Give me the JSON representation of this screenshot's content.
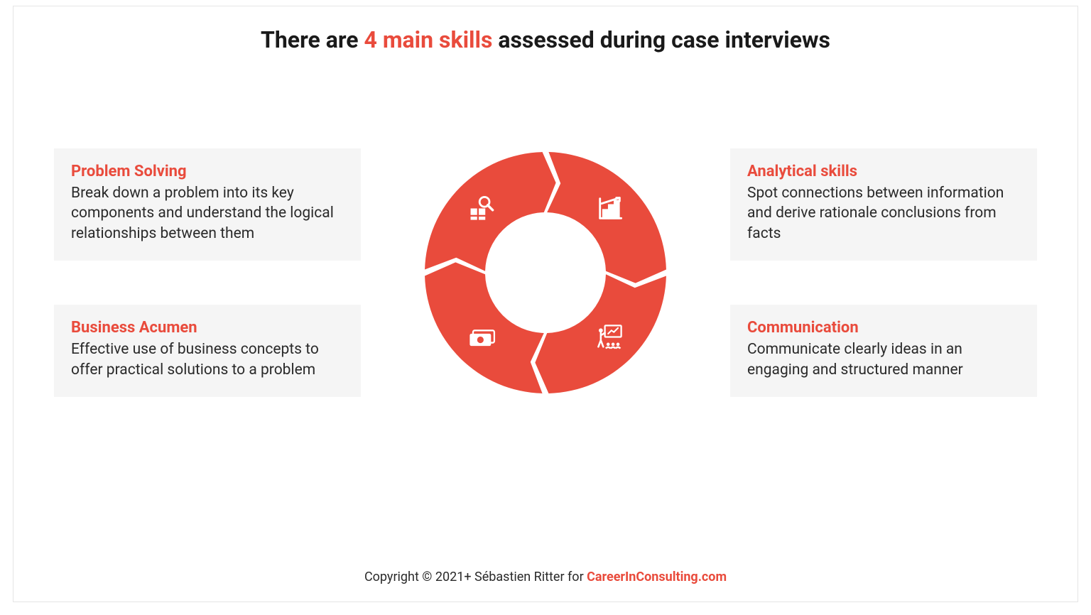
{
  "title": {
    "before": "There are ",
    "accent": "4 main skills",
    "after": " assessed during case interviews",
    "fontsize": 32,
    "accent_color": "#e94b3c",
    "text_color": "#1a1a1a"
  },
  "skills": {
    "top_left": {
      "title": "Problem Solving",
      "desc": "Break down a problem into its key components and understand the logical relationships between them",
      "icon": "analysis-icon"
    },
    "top_right": {
      "title": "Analytical skills",
      "desc": "Spot connections between information and derive rationale conclusions from facts",
      "icon": "chart-icon"
    },
    "bottom_left": {
      "title": "Business Acumen",
      "desc": "Effective use of business concepts to offer practical solutions to a problem",
      "icon": "money-icon"
    },
    "bottom_right": {
      "title": "Communication",
      "desc": "Communicate clearly ideas in an engaging and structured manner",
      "icon": "presentation-icon"
    }
  },
  "donut": {
    "type": "cycle-donut",
    "segments": 4,
    "outer_radius": 170,
    "inner_radius": 85,
    "gap_deg": 3,
    "fill_color": "#e94b3c",
    "background_color": "#ffffff",
    "arrow_notch": 18,
    "icon_color": "#ffffff",
    "icon_radius": 128
  },
  "skill_box": {
    "background_color": "#f5f5f5",
    "title_color": "#e94b3c",
    "title_fontsize": 22,
    "desc_color": "#2a2a2a",
    "desc_fontsize": 21
  },
  "copyright": {
    "prefix": "Copyright © 2021+ Sébastien Ritter for ",
    "brand": "CareerInConsulting.com",
    "brand_color": "#e94b3c",
    "fontsize": 18
  }
}
